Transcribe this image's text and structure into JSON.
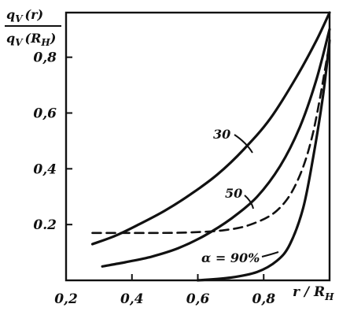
{
  "chart_data": {
    "type": "line",
    "ylabel": {
      "numerator": "q",
      "numerator_sub": "V",
      "numerator_arg": "(r)",
      "denominator": "q",
      "denominator_sub": "V",
      "denominator_arg": "(R",
      "denominator_arg_sub": "H",
      "denominator_arg_close": ")"
    },
    "xlabel": {
      "text": "r / R",
      "sub": "H"
    },
    "xlim": [
      0.2,
      1.0
    ],
    "ylim": [
      0.0,
      0.96
    ],
    "x_ticks": [
      0.2,
      0.4,
      0.6,
      0.8
    ],
    "x_tick_labels": [
      "0,2",
      "0,4",
      "0,6",
      "0,8"
    ],
    "y_ticks": [
      0.2,
      0.4,
      0.6,
      0.8
    ],
    "y_tick_labels": [
      "0.2",
      "0,4",
      "0,6",
      "0,8"
    ],
    "grid": false,
    "series": [
      {
        "name": "30",
        "style": "solid",
        "x": [
          0.28,
          0.35,
          0.42,
          0.5,
          0.58,
          0.66,
          0.74,
          0.82,
          0.9,
          0.96,
          1.0
        ],
        "y": [
          0.13,
          0.16,
          0.2,
          0.25,
          0.31,
          0.38,
          0.47,
          0.58,
          0.73,
          0.86,
          0.96
        ]
      },
      {
        "name": "50",
        "style": "solid",
        "x": [
          0.31,
          0.38,
          0.46,
          0.54,
          0.62,
          0.7,
          0.78,
          0.85,
          0.91,
          0.96,
          1.0
        ],
        "y": [
          0.05,
          0.065,
          0.085,
          0.115,
          0.16,
          0.22,
          0.3,
          0.41,
          0.55,
          0.72,
          0.9
        ]
      },
      {
        "name": "",
        "style": "dashed",
        "x": [
          0.28,
          0.38,
          0.48,
          0.58,
          0.68,
          0.76,
          0.84,
          0.9,
          0.95,
          1.0
        ],
        "y": [
          0.17,
          0.17,
          0.17,
          0.172,
          0.18,
          0.2,
          0.25,
          0.35,
          0.53,
          0.85
        ]
      },
      {
        "name": "α = 90%",
        "style": "solid",
        "x": [
          0.6,
          0.7,
          0.78,
          0.84,
          0.88,
          0.92,
          0.95,
          0.98,
          1.0
        ],
        "y": [
          0.0,
          0.01,
          0.03,
          0.07,
          0.13,
          0.26,
          0.44,
          0.66,
          0.86
        ]
      }
    ]
  }
}
